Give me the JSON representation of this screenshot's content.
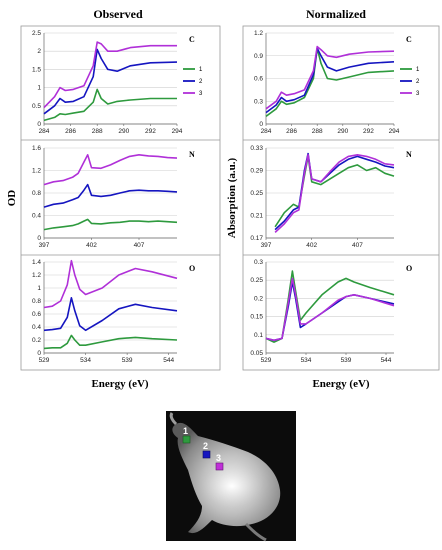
{
  "columns": {
    "left": "Observed",
    "right": "Normalized"
  },
  "y_titles": {
    "left": "OD",
    "right": "Absorption (a.u.)"
  },
  "x_titles": {
    "left": "Energy (eV)",
    "right": "Energy (eV)"
  },
  "legend": {
    "labels": [
      "1",
      "2",
      "3"
    ],
    "colors": [
      "#2e9a3e",
      "#1515c0",
      "#b030d8"
    ]
  },
  "chart_data": [
    {
      "id": "obs-c",
      "type": "line",
      "element": "C",
      "x_ticks": [
        "284",
        "286",
        "288",
        "290",
        "292",
        "294"
      ],
      "xlim": [
        284,
        294
      ],
      "y_ticks": [
        "0",
        "0.5",
        "1",
        "1.5",
        "2",
        "2.5"
      ],
      "ylim": [
        0,
        2.5
      ],
      "grid": true,
      "series": [
        {
          "name": "1",
          "color": "#2e9a3e",
          "x": [
            284,
            284.8,
            285.2,
            285.6,
            286.2,
            287.0,
            287.7,
            288.0,
            288.3,
            288.8,
            289.5,
            290.5,
            292.0,
            294.0
          ],
          "y": [
            0.1,
            0.18,
            0.28,
            0.26,
            0.3,
            0.35,
            0.6,
            0.95,
            0.7,
            0.55,
            0.62,
            0.66,
            0.7,
            0.7
          ]
        },
        {
          "name": "2",
          "color": "#1515c0",
          "x": [
            284,
            284.8,
            285.2,
            285.6,
            286.2,
            287.0,
            287.7,
            288.0,
            288.3,
            288.8,
            289.5,
            290.5,
            292.0,
            294.0
          ],
          "y": [
            0.28,
            0.5,
            0.7,
            0.6,
            0.62,
            0.75,
            1.3,
            2.05,
            1.8,
            1.5,
            1.45,
            1.6,
            1.68,
            1.7
          ]
        },
        {
          "name": "3",
          "color": "#b030d8",
          "x": [
            284,
            284.8,
            285.2,
            285.6,
            286.2,
            287.0,
            287.7,
            288.0,
            288.3,
            288.8,
            289.5,
            290.5,
            292.0,
            294.0
          ],
          "y": [
            0.45,
            0.75,
            1.0,
            0.92,
            0.95,
            1.05,
            1.6,
            2.25,
            2.2,
            2.0,
            2.0,
            2.1,
            2.15,
            2.15
          ]
        }
      ]
    },
    {
      "id": "obs-n",
      "type": "line",
      "element": "N",
      "x_ticks": [
        "397",
        "402",
        "407"
      ],
      "xlim": [
        397,
        411
      ],
      "y_ticks": [
        "0",
        "0.4",
        "0.8",
        "1.2",
        "1.6"
      ],
      "ylim": [
        0,
        1.6
      ],
      "grid": true,
      "series": [
        {
          "name": "1",
          "color": "#2e9a3e",
          "x": [
            397,
            398,
            399,
            400,
            400.6,
            401.2,
            401.6,
            402,
            403,
            404,
            405,
            406,
            407,
            408,
            409,
            410,
            411
          ],
          "y": [
            0.15,
            0.18,
            0.2,
            0.22,
            0.25,
            0.3,
            0.33,
            0.26,
            0.25,
            0.27,
            0.28,
            0.3,
            0.3,
            0.29,
            0.3,
            0.29,
            0.28
          ]
        },
        {
          "name": "2",
          "color": "#1515c0",
          "x": [
            397,
            398,
            399,
            400,
            400.6,
            401.2,
            401.6,
            402,
            403,
            404,
            405,
            406,
            407,
            408,
            409,
            410,
            411
          ],
          "y": [
            0.55,
            0.6,
            0.62,
            0.68,
            0.72,
            0.85,
            0.95,
            0.76,
            0.74,
            0.76,
            0.8,
            0.84,
            0.85,
            0.84,
            0.84,
            0.83,
            0.82
          ]
        },
        {
          "name": "3",
          "color": "#b030d8",
          "x": [
            397,
            398,
            399,
            400,
            400.6,
            401.2,
            401.6,
            402,
            403,
            404,
            405,
            406,
            407,
            408,
            409,
            410,
            411
          ],
          "y": [
            0.95,
            1.0,
            1.02,
            1.08,
            1.15,
            1.35,
            1.48,
            1.25,
            1.24,
            1.3,
            1.38,
            1.45,
            1.48,
            1.46,
            1.45,
            1.43,
            1.42
          ]
        }
      ]
    },
    {
      "id": "obs-o",
      "type": "line",
      "element": "O",
      "x_ticks": [
        "529",
        "534",
        "539",
        "544"
      ],
      "xlim": [
        529,
        545
      ],
      "y_ticks": [
        "0",
        "0.2",
        "0.4",
        "0.6",
        "0.8",
        "1",
        "1.2",
        "1.4"
      ],
      "ylim": [
        0,
        1.4
      ],
      "grid": true,
      "series": [
        {
          "name": "1",
          "color": "#2e9a3e",
          "x": [
            529,
            530,
            531,
            531.8,
            532.3,
            532.7,
            533.3,
            534,
            536,
            538,
            540,
            542,
            545
          ],
          "y": [
            0.07,
            0.08,
            0.08,
            0.15,
            0.27,
            0.2,
            0.12,
            0.12,
            0.17,
            0.22,
            0.24,
            0.22,
            0.2
          ]
        },
        {
          "name": "2",
          "color": "#1515c0",
          "x": [
            529,
            530,
            531,
            531.8,
            532.3,
            532.7,
            533.3,
            534,
            536,
            538,
            540,
            542,
            545
          ],
          "y": [
            0.35,
            0.36,
            0.38,
            0.55,
            0.85,
            0.65,
            0.42,
            0.35,
            0.5,
            0.68,
            0.75,
            0.7,
            0.65
          ]
        },
        {
          "name": "3",
          "color": "#b030d8",
          "x": [
            529,
            530,
            531,
            531.8,
            532.3,
            532.7,
            533.3,
            534,
            536,
            538,
            540,
            542,
            545
          ],
          "y": [
            0.7,
            0.72,
            0.8,
            1.05,
            1.42,
            1.2,
            0.98,
            0.9,
            1.0,
            1.2,
            1.3,
            1.25,
            1.15
          ]
        }
      ]
    },
    {
      "id": "norm-c",
      "type": "line",
      "element": "C",
      "x_ticks": [
        "284",
        "286",
        "288",
        "290",
        "292",
        "294"
      ],
      "xlim": [
        284,
        294
      ],
      "y_ticks": [
        "0",
        "0.3",
        "0.6",
        "0.9",
        "1.2"
      ],
      "ylim": [
        0,
        1.2
      ],
      "grid": true,
      "series": [
        {
          "name": "1",
          "color": "#2e9a3e",
          "x": [
            284,
            284.8,
            285.2,
            285.6,
            286.2,
            287.0,
            287.7,
            288.0,
            288.3,
            288.8,
            289.5,
            290.5,
            292.0,
            294.0
          ],
          "y": [
            0.1,
            0.2,
            0.3,
            0.26,
            0.28,
            0.35,
            0.6,
            1.0,
            0.8,
            0.6,
            0.58,
            0.62,
            0.68,
            0.7
          ]
        },
        {
          "name": "2",
          "color": "#1515c0",
          "x": [
            284,
            284.8,
            285.2,
            285.6,
            286.2,
            287.0,
            287.7,
            288.0,
            288.3,
            288.8,
            289.5,
            290.5,
            292.0,
            294.0
          ],
          "y": [
            0.15,
            0.25,
            0.35,
            0.3,
            0.32,
            0.38,
            0.65,
            1.0,
            0.9,
            0.75,
            0.7,
            0.75,
            0.8,
            0.82
          ]
        },
        {
          "name": "3",
          "color": "#b030d8",
          "x": [
            284,
            284.8,
            285.2,
            285.6,
            286.2,
            287.0,
            287.7,
            288.0,
            288.3,
            288.8,
            289.5,
            290.5,
            292.0,
            294.0
          ],
          "y": [
            0.2,
            0.3,
            0.42,
            0.38,
            0.4,
            0.45,
            0.7,
            1.02,
            0.98,
            0.9,
            0.88,
            0.92,
            0.95,
            0.96
          ]
        }
      ]
    },
    {
      "id": "norm-n",
      "type": "line",
      "element": "N",
      "x_ticks": [
        "397",
        "402",
        "407"
      ],
      "xlim": [
        397,
        411
      ],
      "y_ticks": [
        "0.17",
        "0.21",
        "0.25",
        "0.29",
        "0.33"
      ],
      "ylim": [
        0.17,
        0.33
      ],
      "grid": true,
      "series": [
        {
          "name": "1",
          "color": "#2e9a3e",
          "x": [
            398,
            399,
            400,
            400.6,
            401.2,
            401.6,
            402,
            403,
            404,
            405,
            406,
            407,
            408,
            409,
            410,
            411
          ],
          "y": [
            0.19,
            0.215,
            0.23,
            0.225,
            0.28,
            0.315,
            0.27,
            0.265,
            0.275,
            0.285,
            0.295,
            0.3,
            0.29,
            0.295,
            0.285,
            0.28
          ]
        },
        {
          "name": "2",
          "color": "#1515c0",
          "x": [
            398,
            399,
            400,
            400.6,
            401.2,
            401.6,
            402,
            403,
            404,
            405,
            406,
            407,
            408,
            409,
            410,
            411
          ],
          "y": [
            0.185,
            0.2,
            0.22,
            0.225,
            0.29,
            0.32,
            0.275,
            0.27,
            0.285,
            0.3,
            0.31,
            0.315,
            0.31,
            0.305,
            0.298,
            0.295
          ]
        },
        {
          "name": "3",
          "color": "#b030d8",
          "x": [
            398,
            399,
            400,
            400.6,
            401.2,
            401.6,
            402,
            403,
            404,
            405,
            406,
            407,
            408,
            409,
            410,
            411
          ],
          "y": [
            0.18,
            0.195,
            0.215,
            0.22,
            0.285,
            0.318,
            0.275,
            0.27,
            0.288,
            0.305,
            0.315,
            0.318,
            0.315,
            0.31,
            0.302,
            0.3
          ]
        }
      ]
    },
    {
      "id": "norm-o",
      "type": "line",
      "element": "O",
      "x_ticks": [
        "529",
        "534",
        "539",
        "544"
      ],
      "xlim": [
        529,
        545
      ],
      "y_ticks": [
        "0.05",
        "0.1",
        "0.15",
        "0.2",
        "0.25",
        "0.3"
      ],
      "ylim": [
        0.05,
        0.3
      ],
      "grid": true,
      "series": [
        {
          "name": "1",
          "color": "#2e9a3e",
          "x": [
            529,
            530,
            531,
            531.8,
            532.3,
            532.7,
            533.3,
            534,
            536,
            538,
            539,
            540,
            542,
            545
          ],
          "y": [
            0.09,
            0.08,
            0.09,
            0.2,
            0.275,
            0.22,
            0.14,
            0.16,
            0.21,
            0.245,
            0.255,
            0.245,
            0.23,
            0.21
          ]
        },
        {
          "name": "2",
          "color": "#1515c0",
          "x": [
            529,
            530,
            531,
            531.8,
            532.3,
            532.7,
            533.3,
            534,
            536,
            538,
            539,
            540,
            542,
            545
          ],
          "y": [
            0.09,
            0.085,
            0.09,
            0.18,
            0.245,
            0.2,
            0.12,
            0.13,
            0.16,
            0.19,
            0.205,
            0.21,
            0.2,
            0.185
          ]
        },
        {
          "name": "3",
          "color": "#b030d8",
          "x": [
            529,
            530,
            531,
            531.8,
            532.3,
            532.7,
            533.3,
            534,
            536,
            538,
            539,
            540,
            542,
            545
          ],
          "y": [
            0.09,
            0.085,
            0.09,
            0.19,
            0.255,
            0.21,
            0.13,
            0.13,
            0.16,
            0.195,
            0.205,
            0.21,
            0.2,
            0.18
          ]
        }
      ]
    }
  ],
  "image": {
    "markers": [
      {
        "label": "1",
        "color": "#2e9a3e"
      },
      {
        "label": "2",
        "color": "#1515c0"
      },
      {
        "label": "3",
        "color": "#c030d8"
      }
    ]
  }
}
